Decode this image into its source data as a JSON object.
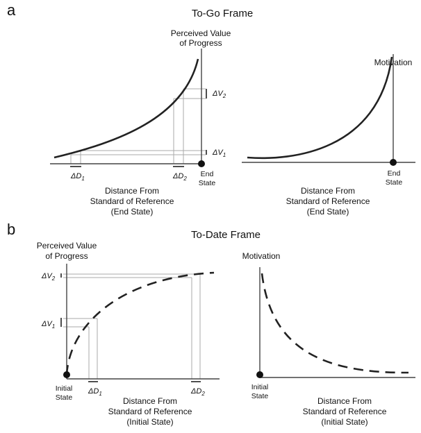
{
  "panel_a": {
    "letter": "a",
    "title": "To-Go Frame",
    "left": {
      "ylabel_line1": "Perceived Value",
      "ylabel_line2": "of Progress",
      "xlabel_line1": "Distance From",
      "xlabel_line2": "Standard of Reference",
      "xlabel_line3": "(End State)",
      "endpoint_line1": "End",
      "endpoint_line2": "State",
      "dv2_delta": "ΔV",
      "dv2_sub": "2",
      "dv1_delta": "ΔV",
      "dv1_sub": "1",
      "dd1_delta": "ΔD",
      "dd1_sub": "1",
      "dd2_delta": "ΔD",
      "dd2_sub": "2"
    },
    "right": {
      "ylabel": "Motivation",
      "xlabel_line1": "Distance From",
      "xlabel_line2": "Standard of Reference",
      "xlabel_line3": "(End State)",
      "endpoint_line1": "End",
      "endpoint_line2": "State"
    }
  },
  "panel_b": {
    "letter": "b",
    "title": "To-Date Frame",
    "left": {
      "ylabel_line1": "Perceived Value",
      "ylabel_line2": "of Progress",
      "xlabel_line1": "Distance From",
      "xlabel_line2": "Standard of Reference",
      "xlabel_line3": "(Initial State)",
      "endpoint_line1": "Initial",
      "endpoint_line2": "State",
      "dv2_delta": "ΔV",
      "dv2_sub": "2",
      "dv1_delta": "ΔV",
      "dv1_sub": "1",
      "dd1_delta": "ΔD",
      "dd1_sub": "1",
      "dd2_delta": "ΔD",
      "dd2_sub": "2"
    },
    "right": {
      "ylabel": "Motivation",
      "xlabel_line1": "Distance From",
      "xlabel_line2": "Standard of Reference",
      "xlabel_line3": "(Initial State)",
      "endpoint_line1": "Initial",
      "endpoint_line2": "State"
    }
  }
}
